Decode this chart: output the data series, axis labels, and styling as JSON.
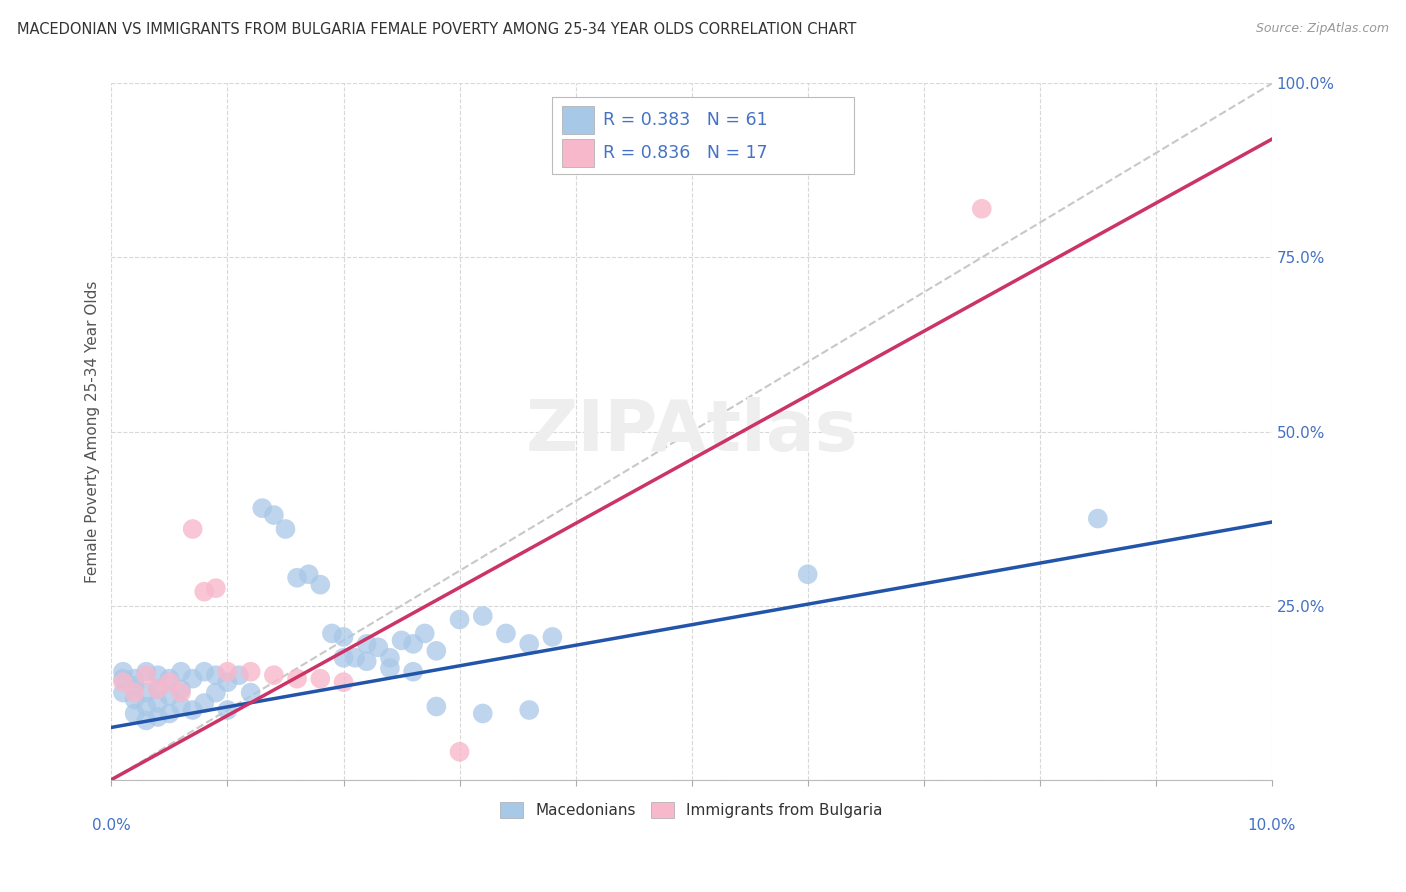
{
  "title": "MACEDONIAN VS IMMIGRANTS FROM BULGARIA FEMALE POVERTY AMONG 25-34 YEAR OLDS CORRELATION CHART",
  "source": "Source: ZipAtlas.com",
  "ylabel": "Female Poverty Among 25-34 Year Olds",
  "xlim": [
    0.0,
    0.1
  ],
  "ylim": [
    0.0,
    1.0
  ],
  "background_color": "#ffffff",
  "grid_color": "#d8d8d8",
  "blue_color": "#a8c8e8",
  "pink_color": "#f8b8cc",
  "blue_line_color": "#2255aa",
  "pink_line_color": "#cc3366",
  "diagonal_color": "#c8c8c8",
  "blue_R": 0.383,
  "blue_N": 61,
  "pink_R": 0.836,
  "pink_N": 17,
  "blue_trend_x": [
    0.0,
    0.1
  ],
  "blue_trend_y": [
    0.075,
    0.37
  ],
  "pink_trend_x": [
    0.0,
    0.1
  ],
  "pink_trend_y": [
    0.0,
    0.92
  ],
  "blue_points_x": [
    0.001,
    0.001,
    0.001,
    0.002,
    0.002,
    0.002,
    0.002,
    0.003,
    0.003,
    0.003,
    0.003,
    0.004,
    0.004,
    0.004,
    0.004,
    0.005,
    0.005,
    0.005,
    0.006,
    0.006,
    0.006,
    0.007,
    0.007,
    0.008,
    0.008,
    0.009,
    0.009,
    0.01,
    0.01,
    0.011,
    0.012,
    0.013,
    0.014,
    0.015,
    0.016,
    0.017,
    0.018,
    0.019,
    0.02,
    0.021,
    0.022,
    0.023,
    0.024,
    0.025,
    0.026,
    0.027,
    0.028,
    0.03,
    0.032,
    0.034,
    0.036,
    0.038,
    0.02,
    0.022,
    0.024,
    0.026,
    0.028,
    0.032,
    0.036,
    0.06,
    0.085
  ],
  "blue_points_y": [
    0.155,
    0.145,
    0.125,
    0.145,
    0.135,
    0.115,
    0.095,
    0.155,
    0.125,
    0.105,
    0.085,
    0.15,
    0.13,
    0.11,
    0.09,
    0.145,
    0.12,
    0.095,
    0.155,
    0.13,
    0.105,
    0.145,
    0.1,
    0.155,
    0.11,
    0.15,
    0.125,
    0.14,
    0.1,
    0.15,
    0.125,
    0.39,
    0.38,
    0.36,
    0.29,
    0.295,
    0.28,
    0.21,
    0.205,
    0.175,
    0.195,
    0.19,
    0.175,
    0.2,
    0.195,
    0.21,
    0.185,
    0.23,
    0.235,
    0.21,
    0.195,
    0.205,
    0.175,
    0.17,
    0.16,
    0.155,
    0.105,
    0.095,
    0.1,
    0.295,
    0.375
  ],
  "pink_points_x": [
    0.001,
    0.002,
    0.003,
    0.004,
    0.005,
    0.006,
    0.007,
    0.008,
    0.009,
    0.01,
    0.012,
    0.014,
    0.016,
    0.018,
    0.02,
    0.03,
    0.075
  ],
  "pink_points_y": [
    0.14,
    0.125,
    0.15,
    0.13,
    0.14,
    0.125,
    0.36,
    0.27,
    0.275,
    0.155,
    0.155,
    0.15,
    0.145,
    0.145,
    0.14,
    0.04,
    0.82
  ],
  "legend_mac": "Macedonians",
  "legend_imm": "Immigrants from Bulgaria"
}
